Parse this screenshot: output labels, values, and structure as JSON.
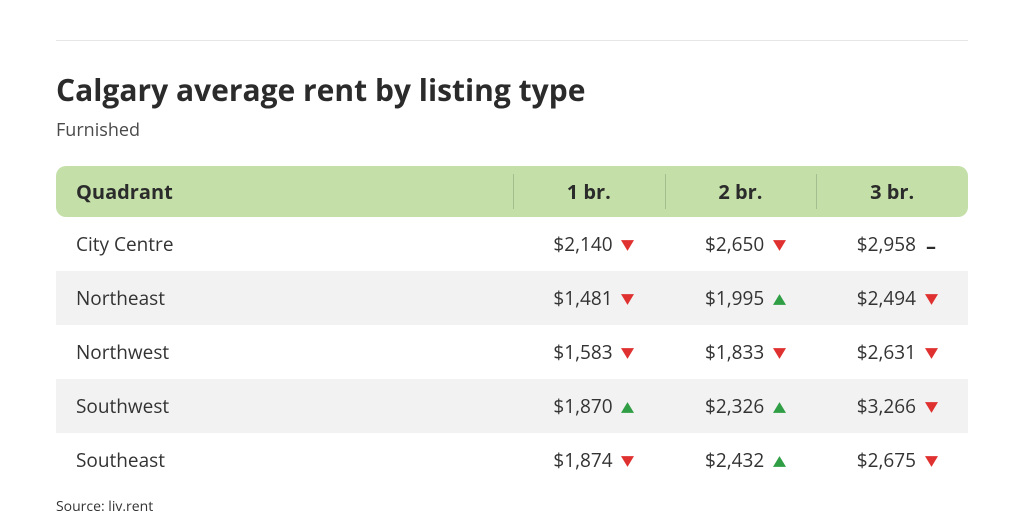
{
  "title": "Calgary average rent by listing type",
  "subtitle": "Furnished",
  "source": "Source: liv.rent",
  "colors": {
    "header_bg": "#c4e0a8",
    "row_stripe": "#f2f2f2",
    "trend_down": "#e03131",
    "trend_up": "#2f9e44",
    "trend_flat": "#2b2b2b",
    "text": "#2b2b2b",
    "rule": "#e6e6e6"
  },
  "table": {
    "type": "table",
    "columns": [
      "Quadrant",
      "1 br.",
      "2 br.",
      "3 br."
    ],
    "rows": [
      {
        "quadrant": "City Centre",
        "cells": [
          {
            "value": "$2,140",
            "trend": "down"
          },
          {
            "value": "$2,650",
            "trend": "down"
          },
          {
            "value": "$2,958",
            "trend": "flat"
          }
        ]
      },
      {
        "quadrant": "Northeast",
        "cells": [
          {
            "value": "$1,481",
            "trend": "down"
          },
          {
            "value": "$1,995",
            "trend": "up"
          },
          {
            "value": "$2,494",
            "trend": "down"
          }
        ]
      },
      {
        "quadrant": "Northwest",
        "cells": [
          {
            "value": "$1,583",
            "trend": "down"
          },
          {
            "value": "$1,833",
            "trend": "down"
          },
          {
            "value": "$2,631",
            "trend": "down"
          }
        ]
      },
      {
        "quadrant": "Southwest",
        "cells": [
          {
            "value": "$1,870",
            "trend": "up"
          },
          {
            "value": "$2,326",
            "trend": "up"
          },
          {
            "value": "$3,266",
            "trend": "down"
          }
        ]
      },
      {
        "quadrant": "Southeast",
        "cells": [
          {
            "value": "$1,874",
            "trend": "down"
          },
          {
            "value": "$2,432",
            "trend": "up"
          },
          {
            "value": "$2,675",
            "trend": "down"
          }
        ]
      }
    ]
  }
}
